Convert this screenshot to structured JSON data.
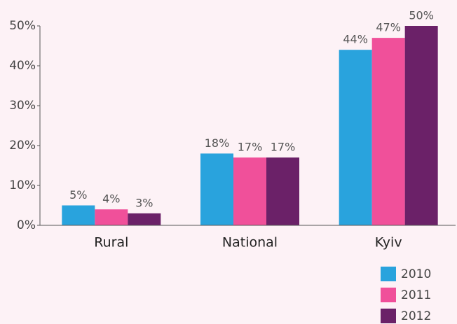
{
  "chart_data": {
    "type": "bar",
    "categories": [
      "Rural",
      "National",
      "Kyiv"
    ],
    "series": [
      {
        "name": "2010",
        "color": "#29a3dd",
        "values": [
          5,
          18,
          44
        ],
        "value_labels": [
          "5%",
          "18%",
          "44%"
        ]
      },
      {
        "name": "2011",
        "color": "#f0509a",
        "values": [
          4,
          17,
          47
        ],
        "value_labels": [
          "4%",
          "17%",
          "47%"
        ]
      },
      {
        "name": "2012",
        "color": "#6b2168",
        "values": [
          3,
          17,
          50
        ],
        "value_labels": [
          "3%",
          "17%",
          "50%"
        ]
      }
    ],
    "ylim": [
      0,
      50
    ],
    "yticks": [
      {
        "value": 0,
        "label": "0%"
      },
      {
        "value": 10,
        "label": "10%"
      },
      {
        "value": 20,
        "label": "20%"
      },
      {
        "value": 30,
        "label": "30%"
      },
      {
        "value": 40,
        "label": "40%"
      },
      {
        "value": 50,
        "label": "50%"
      }
    ],
    "legend": "bottom-right"
  }
}
